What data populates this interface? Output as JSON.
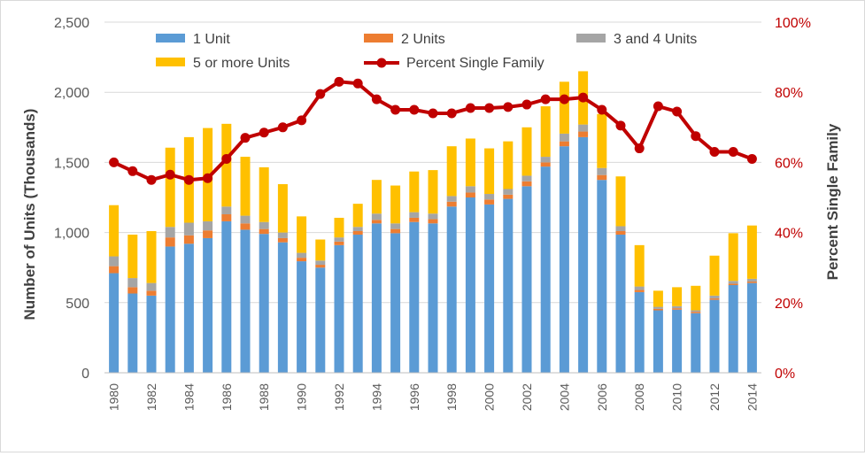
{
  "chart_data": {
    "type": "bar",
    "stacked": true,
    "title": "",
    "categories": [
      "1980",
      "1981",
      "1982",
      "1983",
      "1984",
      "1985",
      "1986",
      "1987",
      "1988",
      "1989",
      "1990",
      "1991",
      "1992",
      "1993",
      "1994",
      "1995",
      "1996",
      "1997",
      "1998",
      "1999",
      "2000",
      "2001",
      "2002",
      "2003",
      "2004",
      "2005",
      "2006",
      "2007",
      "2008",
      "2009",
      "2010",
      "2011",
      "2012",
      "2013",
      "2014"
    ],
    "x_tick_labels": [
      "1980",
      "1982",
      "1984",
      "1986",
      "1988",
      "1990",
      "1992",
      "1994",
      "1996",
      "1998",
      "2000",
      "2002",
      "2004",
      "2006",
      "2008",
      "2010",
      "2012",
      "2014"
    ],
    "ylabel": "Number of Units (Thousands)",
    "y2label": "Percent Single Family",
    "ylim": [
      0,
      2500
    ],
    "y_ticks": [
      "0",
      "500",
      "1,000",
      "1,500",
      "2,000",
      "2,500"
    ],
    "y2lim": [
      0,
      100
    ],
    "y2_ticks": [
      "0%",
      "20%",
      "40%",
      "60%",
      "80%",
      "100%"
    ],
    "gridlines": true,
    "legend_position": "top",
    "series": [
      {
        "name": "1 Unit",
        "type": "bar",
        "color": "#5b9bd5",
        "values": [
          710,
          565,
          550,
          900,
          920,
          960,
          1080,
          1020,
          990,
          930,
          795,
          750,
          910,
          985,
          1065,
          995,
          1075,
          1065,
          1185,
          1250,
          1200,
          1240,
          1330,
          1470,
          1615,
          1680,
          1375,
          985,
          575,
          445,
          450,
          425,
          520,
          625,
          640
        ]
      },
      {
        "name": "2 Units",
        "type": "bar",
        "color": "#ed7d31",
        "values": [
          50,
          45,
          35,
          65,
          60,
          55,
          50,
          45,
          35,
          30,
          25,
          20,
          25,
          25,
          25,
          30,
          30,
          30,
          35,
          35,
          35,
          30,
          35,
          30,
          35,
          40,
          35,
          25,
          15,
          10,
          10,
          10,
          10,
          10,
          10
        ]
      },
      {
        "name": "3 and 4 Units",
        "type": "bar",
        "color": "#a5a5a5",
        "values": [
          70,
          65,
          55,
          75,
          90,
          65,
          55,
          55,
          50,
          40,
          35,
          30,
          30,
          30,
          45,
          40,
          40,
          40,
          40,
          45,
          40,
          40,
          40,
          40,
          55,
          50,
          50,
          35,
          25,
          15,
          15,
          10,
          20,
          20,
          20
        ]
      },
      {
        "name": "5 or more Units",
        "type": "bar",
        "color": "#ffc000",
        "values": [
          365,
          310,
          370,
          565,
          610,
          665,
          590,
          420,
          390,
          345,
          260,
          150,
          140,
          165,
          240,
          270,
          290,
          310,
          355,
          340,
          325,
          340,
          345,
          360,
          370,
          380,
          385,
          355,
          295,
          115,
          135,
          175,
          285,
          340,
          380
        ]
      },
      {
        "name": "Percent Single Family",
        "type": "line",
        "axis": "secondary",
        "color": "#c00000",
        "values": [
          60,
          57.5,
          55,
          56.5,
          55,
          55.5,
          61,
          67,
          68.5,
          70,
          72,
          79.5,
          83,
          82.5,
          78,
          75,
          75,
          74,
          74,
          75.5,
          75.5,
          75.8,
          76.5,
          78,
          78,
          78.5,
          75,
          70.5,
          64,
          76,
          74.5,
          67.5,
          63,
          63,
          61
        ]
      }
    ]
  }
}
